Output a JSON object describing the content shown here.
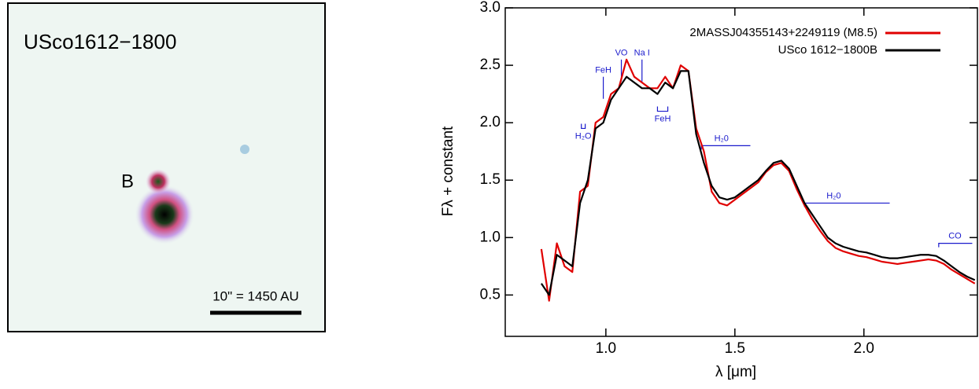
{
  "image_panel": {
    "title": "USco1612−1800",
    "label": "B",
    "scale_bar": "10\" = 1450 AU"
  },
  "chart_data": {
    "type": "line",
    "xlabel": "λ [μm]",
    "ylabel": "Fλ + constant",
    "xlim": [
      0.61,
      2.44
    ],
    "ylim": [
      0.14,
      3.0
    ],
    "xticks": [
      {
        "value": 1,
        "label": "1.0"
      },
      1.5,
      {
        "value": 2,
        "label": "2.0"
      }
    ],
    "yticks": [
      0.5,
      {
        "value": 1,
        "label": "1.0"
      },
      1.5,
      {
        "value": 2,
        "label": "2.0"
      },
      2.5,
      {
        "value": 3,
        "label": "3.0"
      }
    ],
    "legend": "upper right",
    "x": [
      0.75,
      0.78,
      0.81,
      0.84,
      0.87,
      0.9,
      0.93,
      0.96,
      0.99,
      1.02,
      1.05,
      1.08,
      1.11,
      1.14,
      1.17,
      1.2,
      1.23,
      1.26,
      1.29,
      1.32,
      1.35,
      1.38,
      1.41,
      1.44,
      1.47,
      1.5,
      1.53,
      1.56,
      1.59,
      1.62,
      1.65,
      1.68,
      1.71,
      1.74,
      1.77,
      1.8,
      1.83,
      1.86,
      1.89,
      1.92,
      1.95,
      1.98,
      2.01,
      2.04,
      2.07,
      2.1,
      2.13,
      2.16,
      2.19,
      2.22,
      2.25,
      2.28,
      2.31,
      2.34,
      2.37,
      2.4,
      2.43
    ],
    "series": [
      {
        "name": "2MASSJ04355143+2249119 (M8.5)",
        "color": "#e00000",
        "values": [
          0.9,
          0.45,
          0.95,
          0.75,
          0.7,
          1.4,
          1.45,
          2.0,
          2.05,
          2.25,
          2.3,
          2.55,
          2.4,
          2.35,
          2.3,
          2.3,
          2.4,
          2.3,
          2.5,
          2.45,
          1.95,
          1.75,
          1.4,
          1.3,
          1.28,
          1.33,
          1.38,
          1.43,
          1.48,
          1.57,
          1.63,
          1.65,
          1.58,
          1.42,
          1.28,
          1.16,
          1.06,
          0.97,
          0.91,
          0.88,
          0.86,
          0.84,
          0.83,
          0.81,
          0.79,
          0.78,
          0.77,
          0.78,
          0.79,
          0.8,
          0.81,
          0.8,
          0.77,
          0.72,
          0.68,
          0.64,
          0.6
        ]
      },
      {
        "name": "USco 1612−1800B",
        "color": "#000000",
        "values": [
          0.6,
          0.5,
          0.85,
          0.8,
          0.75,
          1.3,
          1.5,
          1.95,
          2.0,
          2.2,
          2.3,
          2.4,
          2.35,
          2.3,
          2.3,
          2.25,
          2.35,
          2.3,
          2.45,
          2.45,
          1.9,
          1.65,
          1.45,
          1.35,
          1.33,
          1.35,
          1.4,
          1.45,
          1.5,
          1.58,
          1.65,
          1.67,
          1.6,
          1.45,
          1.3,
          1.2,
          1.1,
          1.0,
          0.95,
          0.92,
          0.9,
          0.88,
          0.87,
          0.85,
          0.83,
          0.82,
          0.82,
          0.83,
          0.84,
          0.85,
          0.85,
          0.84,
          0.8,
          0.75,
          0.7,
          0.66,
          0.63
        ]
      }
    ],
    "annotations": [
      {
        "label": "H₂O",
        "x": [
          0.905,
          0.92
        ],
        "y": 1.95
      },
      {
        "label": "FeH",
        "x": 0.99,
        "y": 2.4
      },
      {
        "label": "VO",
        "x": 1.06,
        "y": 2.55
      },
      {
        "label": "Na I",
        "x": 1.14,
        "y": 2.55
      },
      {
        "label": "FeH",
        "x": [
          1.2,
          1.24
        ],
        "y": 2.1
      },
      {
        "label": "H₂0",
        "x": [
          1.37,
          1.56
        ],
        "y": 1.8
      },
      {
        "label": "H₂0",
        "x": [
          1.77,
          2.1
        ],
        "y": 1.3
      },
      {
        "label": "CO",
        "x": [
          2.29,
          2.42
        ],
        "y": 0.95
      }
    ]
  }
}
